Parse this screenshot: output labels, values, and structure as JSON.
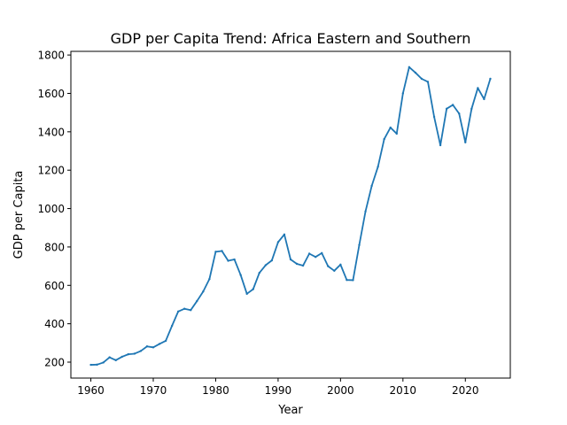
{
  "chart_data": {
    "type": "line",
    "title": "GDP per Capita Trend: Africa Eastern and Southern",
    "xlabel": "Year",
    "ylabel": "GDP per Capita",
    "xlim": [
      1956.8,
      2027.2
    ],
    "ylim": [
      117,
      1819
    ],
    "xticks": [
      1960,
      1970,
      1980,
      1990,
      2000,
      2010,
      2020
    ],
    "yticks": [
      200,
      400,
      600,
      800,
      1000,
      1200,
      1400,
      1600,
      1800
    ],
    "grid": false,
    "series": [
      {
        "name": "GDP per Capita",
        "color": "#1f77b4",
        "x": [
          1960,
          1961,
          1962,
          1963,
          1964,
          1965,
          1966,
          1967,
          1968,
          1969,
          1970,
          1971,
          1972,
          1973,
          1974,
          1975,
          1976,
          1977,
          1978,
          1979,
          1980,
          1981,
          1982,
          1983,
          1984,
          1985,
          1986,
          1987,
          1988,
          1989,
          1990,
          1991,
          1992,
          1993,
          1994,
          1995,
          1996,
          1997,
          1998,
          1999,
          2000,
          2001,
          2002,
          2003,
          2004,
          2005,
          2006,
          2007,
          2008,
          2009,
          2010,
          2011,
          2012,
          2013,
          2014,
          2015,
          2016,
          2017,
          2018,
          2019,
          2020,
          2021,
          2022,
          2023,
          2024
        ],
        "values": [
          186,
          187,
          198,
          225,
          210,
          228,
          241,
          244,
          258,
          282,
          277,
          295,
          311,
          389,
          464,
          478,
          471,
          518,
          568,
          633,
          775,
          779,
          728,
          735,
          654,
          556,
          580,
          665,
          705,
          730,
          825,
          865,
          735,
          712,
          703,
          765,
          748,
          768,
          700,
          676,
          708,
          628,
          627,
          810,
          985,
          1118,
          1218,
          1362,
          1422,
          1390,
          1600,
          1737,
          1708,
          1676,
          1660,
          1478,
          1330,
          1520,
          1540,
          1495,
          1345,
          1520,
          1628,
          1570,
          1676
        ]
      }
    ]
  }
}
